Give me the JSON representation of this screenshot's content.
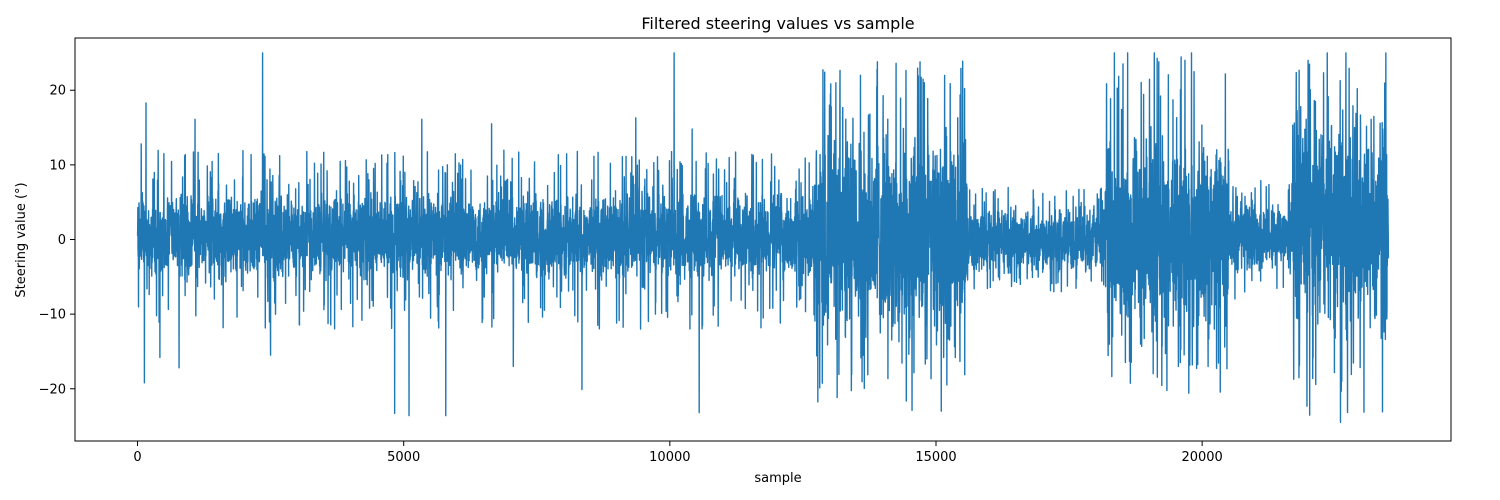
{
  "chart_data": {
    "type": "line",
    "title": "Filtered steering values vs sample",
    "xlabel": "sample",
    "ylabel": "Steering value (°)",
    "xlim": [
      -1175,
      24675
    ],
    "ylim": [
      -27,
      27
    ],
    "xticks": [
      0,
      5000,
      10000,
      15000,
      20000
    ],
    "yticks": [
      -20,
      -10,
      0,
      10,
      20
    ],
    "xtick_labels": [
      "0",
      "5000",
      "10000",
      "15000",
      "20000"
    ],
    "ytick_labels": [
      "−20",
      "−10",
      "0",
      "10",
      "20"
    ],
    "grid": false,
    "legend": "none",
    "series": [
      {
        "color": "#1f77b4",
        "n_samples": 23500,
        "x_range": [
          0,
          23500
        ],
        "segments": [
          {
            "x_start": 0,
            "x_end": 12700,
            "typical_band": [
              -6,
              7
            ],
            "peak_band": [
              -12,
              12
            ]
          },
          {
            "x_start": 12700,
            "x_end": 15600,
            "typical_band": [
              -15,
              16
            ],
            "peak_band": [
              -22,
              23
            ]
          },
          {
            "x_start": 15600,
            "x_end": 18200,
            "typical_band": [
              -5,
              5
            ],
            "peak_band": [
              -7,
              7
            ]
          },
          {
            "x_start": 18200,
            "x_end": 20500,
            "typical_band": [
              -14,
              15
            ],
            "peak_band": [
              -21,
              25
            ]
          },
          {
            "x_start": 20500,
            "x_end": 21700,
            "typical_band": [
              -5,
              6
            ],
            "peak_band": [
              -8,
              8
            ]
          },
          {
            "x_start": 21700,
            "x_end": 23500,
            "typical_band": [
              -15,
              20
            ],
            "peak_band": [
              -24,
              25
            ]
          }
        ],
        "spikes": [
          {
            "x": 70,
            "y": 12.8
          },
          {
            "x": 130,
            "y": -19.2
          },
          {
            "x": 160,
            "y": 18.3
          },
          {
            "x": 420,
            "y": -15.8
          },
          {
            "x": 780,
            "y": -17.2
          },
          {
            "x": 1080,
            "y": 16.1
          },
          {
            "x": 2350,
            "y": 25.0
          },
          {
            "x": 2500,
            "y": -15.5
          },
          {
            "x": 4830,
            "y": -23.3
          },
          {
            "x": 5100,
            "y": -23.6
          },
          {
            "x": 5340,
            "y": 16.1
          },
          {
            "x": 5790,
            "y": -23.6
          },
          {
            "x": 6650,
            "y": 15.5
          },
          {
            "x": 7060,
            "y": -17.0
          },
          {
            "x": 8350,
            "y": -20.1
          },
          {
            "x": 9360,
            "y": 16.3
          },
          {
            "x": 10080,
            "y": 25.0
          },
          {
            "x": 10420,
            "y": 14.8
          },
          {
            "x": 10550,
            "y": -23.2
          },
          {
            "x": 13000,
            "y": 18.0
          },
          {
            "x": 13580,
            "y": 22.0
          },
          {
            "x": 13900,
            "y": 23.8
          },
          {
            "x": 14250,
            "y": 23.6
          },
          {
            "x": 14700,
            "y": 23.8
          },
          {
            "x": 14550,
            "y": -22.9
          },
          {
            "x": 15100,
            "y": -23.0
          },
          {
            "x": 15500,
            "y": 23.9
          },
          {
            "x": 18350,
            "y": 25.0
          },
          {
            "x": 18600,
            "y": 25.0
          },
          {
            "x": 19100,
            "y": 25.0
          },
          {
            "x": 19800,
            "y": 25.0
          },
          {
            "x": 22350,
            "y": 25.0
          },
          {
            "x": 22700,
            "y": 25.0
          },
          {
            "x": 22600,
            "y": -24.5
          },
          {
            "x": 23450,
            "y": 25.0
          }
        ]
      }
    ]
  }
}
